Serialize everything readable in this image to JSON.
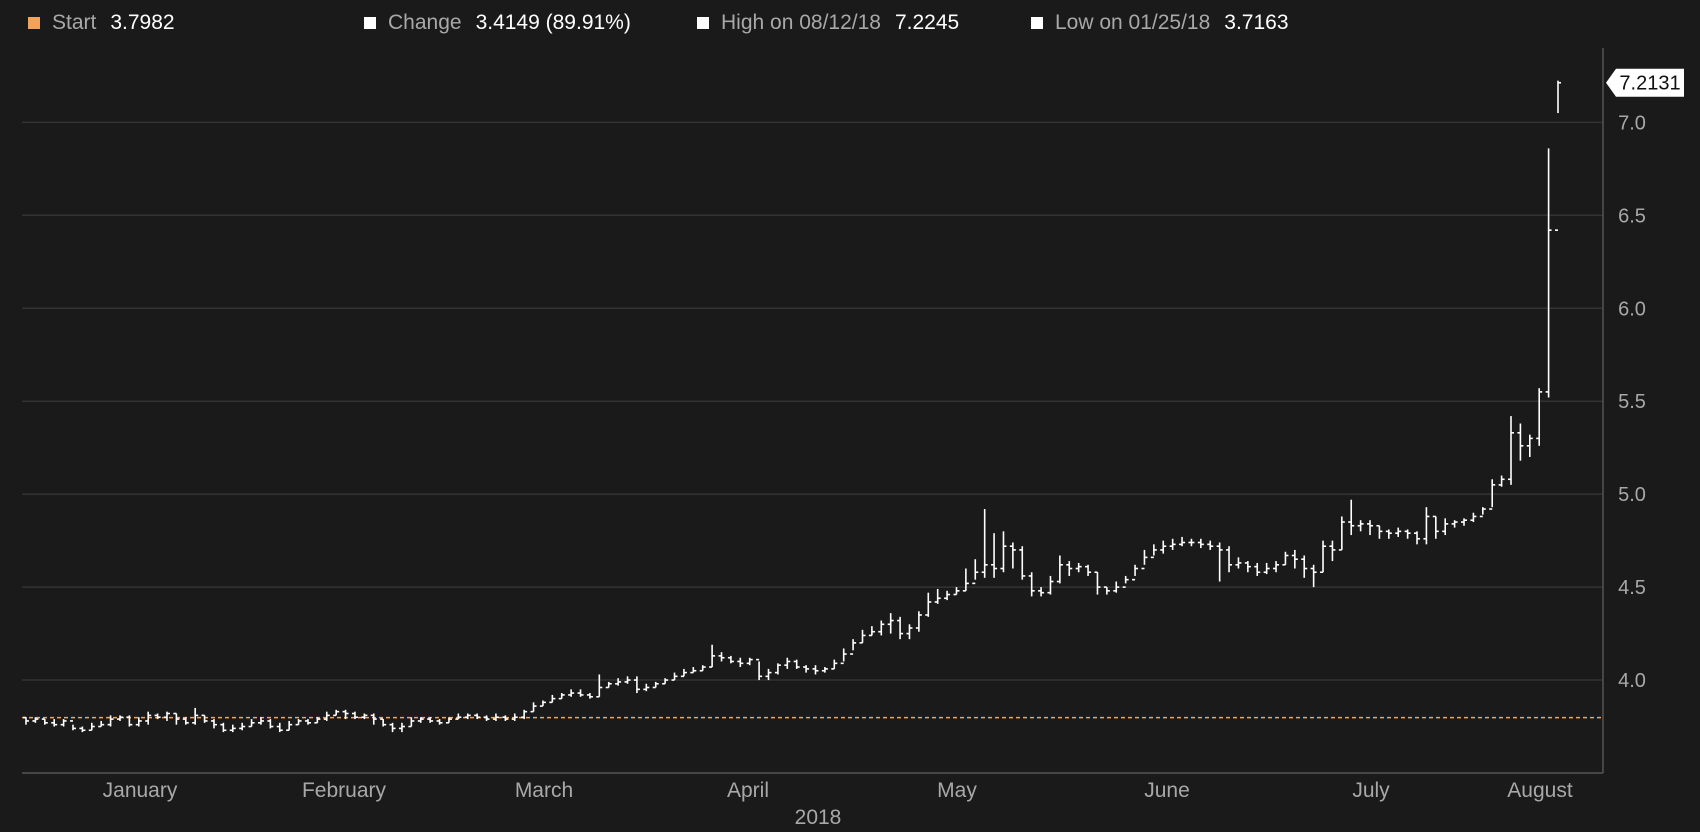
{
  "legend": {
    "start": {
      "label": "Start",
      "value": "3.7982",
      "color": "#f2a45a"
    },
    "change": {
      "label": "Change",
      "value": "3.4149 (89.91%)",
      "color": "#ffffff"
    },
    "high": {
      "label": "High on 08/12/18",
      "value": "7.2245",
      "color": "#ffffff"
    },
    "low": {
      "label": "Low on 01/25/18",
      "value": "3.7163",
      "color": "#ffffff"
    }
  },
  "colors": {
    "background": "#1a1a1a",
    "grid": "#333333",
    "bar": "#ffffff",
    "start_line": "#f2a45a",
    "axis_text": "#a8a8a8"
  },
  "chart_data": {
    "type": "ohlc",
    "ylim": [
      3.5,
      7.4
    ],
    "yticks": [
      "4.0",
      "4.5",
      "5.0",
      "5.5",
      "6.0",
      "6.5",
      "7.0"
    ],
    "month_labels": [
      "January",
      "February",
      "March",
      "April",
      "May",
      "June",
      "July",
      "August"
    ],
    "year_label": "2018",
    "grid": true,
    "start_value": 3.7982,
    "last_value_label": "7.2131",
    "high": 7.2245,
    "low": 3.7163,
    "series": [
      {
        "closes": [
          3.78,
          3.79,
          3.77,
          3.76,
          3.78,
          3.74,
          3.73,
          3.75,
          3.76,
          3.79,
          3.8,
          3.76,
          3.78,
          3.81,
          3.8,
          3.82,
          3.79,
          3.77,
          3.81,
          3.78,
          3.76,
          3.73,
          3.74,
          3.75,
          3.77,
          3.78,
          3.75,
          3.73,
          3.76,
          3.78,
          3.77,
          3.79,
          3.81,
          3.83,
          3.82,
          3.8,
          3.81,
          3.79,
          3.76,
          3.74,
          3.75,
          3.78,
          3.79,
          3.78,
          3.77,
          3.79,
          3.8,
          3.81,
          3.8,
          3.79,
          3.8,
          3.79,
          3.8,
          3.83,
          3.86,
          3.88,
          3.9,
          3.92,
          3.93,
          3.92,
          3.91,
          3.96,
          3.98,
          3.99,
          4.0,
          3.95,
          3.96,
          3.98,
          4.0,
          4.02,
          4.04,
          4.05,
          4.07,
          4.13,
          4.12,
          4.1,
          4.09,
          4.11,
          4.02,
          4.04,
          4.08,
          4.1,
          4.07,
          4.06,
          4.05,
          4.06,
          4.09,
          4.14,
          4.2,
          4.24,
          4.26,
          4.3,
          4.32,
          4.25,
          4.28,
          4.35,
          4.42,
          4.44,
          4.46,
          4.48,
          4.52,
          4.58,
          4.62,
          4.6,
          4.72,
          4.7,
          4.56,
          4.48,
          4.47,
          4.53,
          4.62,
          4.6,
          4.61,
          4.58,
          4.5,
          4.48,
          4.5,
          4.54,
          4.6,
          4.66,
          4.7,
          4.72,
          4.73,
          4.74,
          4.74,
          4.73,
          4.72,
          4.7,
          4.62,
          4.63,
          4.61,
          4.58,
          4.6,
          4.62,
          4.67,
          4.65,
          4.6,
          4.58,
          4.72,
          4.7,
          4.85,
          4.83,
          4.84,
          4.83,
          4.8,
          4.79,
          4.8,
          4.79,
          4.76,
          4.88,
          4.8,
          4.84,
          4.85,
          4.86,
          4.88,
          4.92,
          5.05,
          5.08,
          5.33,
          5.26,
          5.3,
          5.55,
          6.42,
          7.2131
        ],
        "highs": [
          3.8,
          3.8,
          3.79,
          3.79,
          3.79,
          3.76,
          3.75,
          3.77,
          3.78,
          3.81,
          3.81,
          3.81,
          3.8,
          3.83,
          3.82,
          3.83,
          3.82,
          3.8,
          3.85,
          3.81,
          3.79,
          3.77,
          3.76,
          3.77,
          3.79,
          3.8,
          3.79,
          3.77,
          3.78,
          3.79,
          3.79,
          3.8,
          3.83,
          3.84,
          3.84,
          3.83,
          3.82,
          3.82,
          3.79,
          3.77,
          3.77,
          3.8,
          3.8,
          3.8,
          3.79,
          3.8,
          3.82,
          3.82,
          3.82,
          3.81,
          3.82,
          3.81,
          3.82,
          3.84,
          3.88,
          3.89,
          3.92,
          3.93,
          3.95,
          3.95,
          3.93,
          4.03,
          3.99,
          4.01,
          4.02,
          4.02,
          3.98,
          3.99,
          4.01,
          4.04,
          4.06,
          4.07,
          4.08,
          4.19,
          4.15,
          4.13,
          4.12,
          4.12,
          4.1,
          4.06,
          4.09,
          4.12,
          4.11,
          4.08,
          4.08,
          4.07,
          4.11,
          4.17,
          4.22,
          4.27,
          4.29,
          4.32,
          4.36,
          4.34,
          4.3,
          4.37,
          4.47,
          4.49,
          4.48,
          4.5,
          4.6,
          4.65,
          4.92,
          4.79,
          4.8,
          4.74,
          4.72,
          4.58,
          4.5,
          4.56,
          4.67,
          4.64,
          4.63,
          4.62,
          4.58,
          4.5,
          4.53,
          4.56,
          4.62,
          4.7,
          4.73,
          4.75,
          4.76,
          4.77,
          4.76,
          4.76,
          4.75,
          4.74,
          4.72,
          4.66,
          4.64,
          4.63,
          4.63,
          4.64,
          4.69,
          4.7,
          4.67,
          4.62,
          4.75,
          4.75,
          4.88,
          4.97,
          4.86,
          4.86,
          4.83,
          4.81,
          4.82,
          4.81,
          4.8,
          4.93,
          4.88,
          4.87,
          4.86,
          4.87,
          4.9,
          4.93,
          5.08,
          5.1,
          5.42,
          5.38,
          5.32,
          5.57,
          6.86,
          7.2245
        ],
        "lows": [
          3.76,
          3.77,
          3.76,
          3.75,
          3.75,
          3.73,
          3.72,
          3.73,
          3.75,
          3.75,
          3.78,
          3.75,
          3.75,
          3.76,
          3.79,
          3.78,
          3.76,
          3.76,
          3.76,
          3.77,
          3.74,
          3.72,
          3.72,
          3.73,
          3.75,
          3.76,
          3.74,
          3.72,
          3.73,
          3.76,
          3.76,
          3.77,
          3.78,
          3.81,
          3.79,
          3.79,
          3.79,
          3.76,
          3.75,
          3.72,
          3.72,
          3.75,
          3.77,
          3.77,
          3.76,
          3.77,
          3.79,
          3.79,
          3.79,
          3.78,
          3.78,
          3.78,
          3.78,
          3.79,
          3.83,
          3.86,
          3.88,
          3.9,
          3.91,
          3.91,
          3.9,
          3.91,
          3.96,
          3.97,
          3.98,
          3.93,
          3.94,
          3.96,
          3.98,
          4.0,
          4.02,
          4.04,
          4.05,
          4.07,
          4.1,
          4.09,
          4.07,
          4.08,
          4.0,
          4.0,
          4.03,
          4.06,
          4.06,
          4.04,
          4.03,
          4.04,
          4.06,
          4.1,
          4.16,
          4.2,
          4.24,
          4.24,
          4.25,
          4.22,
          4.22,
          4.26,
          4.34,
          4.41,
          4.43,
          4.46,
          4.48,
          4.54,
          4.55,
          4.55,
          4.58,
          4.6,
          4.54,
          4.45,
          4.45,
          4.46,
          4.52,
          4.56,
          4.58,
          4.56,
          4.46,
          4.46,
          4.47,
          4.52,
          4.56,
          4.62,
          4.67,
          4.68,
          4.7,
          4.72,
          4.72,
          4.71,
          4.7,
          4.53,
          4.58,
          4.6,
          4.58,
          4.56,
          4.57,
          4.58,
          4.62,
          4.6,
          4.55,
          4.5,
          4.58,
          4.64,
          4.7,
          4.78,
          4.8,
          4.78,
          4.76,
          4.76,
          4.77,
          4.76,
          4.73,
          4.73,
          4.76,
          4.78,
          4.82,
          4.83,
          4.85,
          4.89,
          4.93,
          5.04,
          5.05,
          5.18,
          5.2,
          5.26,
          5.52,
          7.05
        ]
      }
    ]
  }
}
